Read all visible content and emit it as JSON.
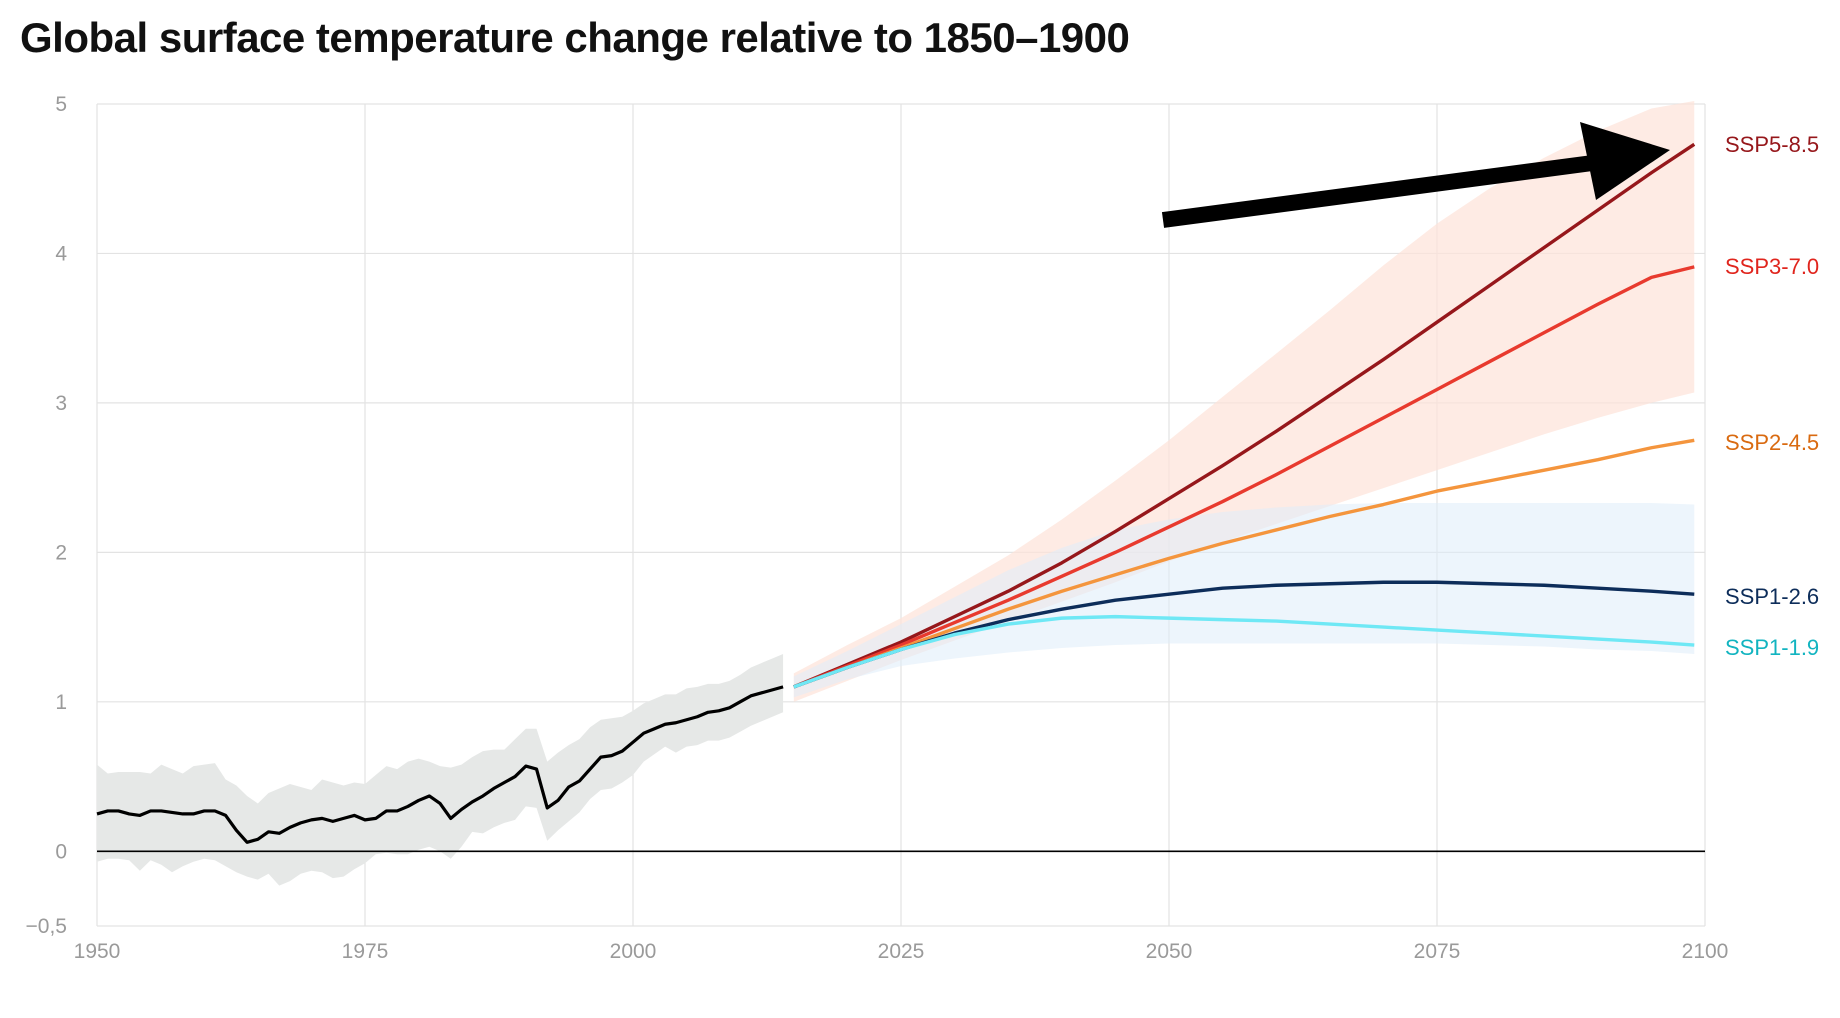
{
  "title": "Global surface temperature change relative to 1850–1900",
  "chart_data": {
    "type": "line",
    "title": "Global surface temperature change relative to 1850–1900",
    "xlabel": "",
    "ylabel": "",
    "xlim": [
      1950,
      2100
    ],
    "ylim": [
      -0.5,
      5
    ],
    "x_ticks": [
      1950,
      1975,
      2000,
      2025,
      2050,
      2075,
      2100
    ],
    "y_ticks": [
      5,
      4,
      3,
      2,
      1,
      0,
      -0.5
    ],
    "x_tick_labels": [
      "1950",
      "1975",
      "2000",
      "2025",
      "2050",
      "2075",
      "2100"
    ],
    "y_tick_labels": [
      "5",
      "4",
      "3",
      "2",
      "1",
      "0",
      "−0,5"
    ],
    "grid": true,
    "zero_line": true,
    "historical": {
      "color": "#000000",
      "x": [
        1950,
        1951,
        1952,
        1953,
        1954,
        1955,
        1956,
        1957,
        1958,
        1959,
        1960,
        1961,
        1962,
        1963,
        1964,
        1965,
        1966,
        1967,
        1968,
        1969,
        1970,
        1971,
        1972,
        1973,
        1974,
        1975,
        1976,
        1977,
        1978,
        1979,
        1980,
        1981,
        1982,
        1983,
        1984,
        1985,
        1986,
        1987,
        1988,
        1989,
        1990,
        1991,
        1992,
        1993,
        1994,
        1995,
        1996,
        1997,
        1998,
        1999,
        2000,
        2001,
        2002,
        2003,
        2004,
        2005,
        2006,
        2007,
        2008,
        2009,
        2010,
        2011,
        2012,
        2013,
        2014
      ],
      "y": [
        0.25,
        0.27,
        0.27,
        0.25,
        0.24,
        0.27,
        0.27,
        0.26,
        0.25,
        0.25,
        0.27,
        0.27,
        0.24,
        0.14,
        0.06,
        0.08,
        0.13,
        0.12,
        0.16,
        0.19,
        0.21,
        0.22,
        0.2,
        0.22,
        0.24,
        0.21,
        0.22,
        0.27,
        0.27,
        0.3,
        0.34,
        0.37,
        0.32,
        0.22,
        0.28,
        0.33,
        0.37,
        0.42,
        0.46,
        0.5,
        0.57,
        0.55,
        0.29,
        0.34,
        0.43,
        0.47,
        0.55,
        0.63,
        0.64,
        0.67,
        0.73,
        0.79,
        0.82,
        0.85,
        0.86,
        0.88,
        0.9,
        0.93,
        0.94,
        0.96,
        1.0,
        1.04,
        1.06,
        1.08,
        1.1
      ],
      "band_low": [
        -0.07,
        -0.05,
        -0.05,
        -0.06,
        -0.13,
        -0.06,
        -0.09,
        -0.14,
        -0.1,
        -0.07,
        -0.05,
        -0.06,
        -0.1,
        -0.14,
        -0.17,
        -0.19,
        -0.15,
        -0.23,
        -0.2,
        -0.15,
        -0.13,
        -0.14,
        -0.18,
        -0.17,
        -0.12,
        -0.08,
        -0.02,
        -0.01,
        -0.02,
        -0.02,
        0.01,
        0.03,
        0.0,
        -0.05,
        0.03,
        0.13,
        0.12,
        0.16,
        0.19,
        0.21,
        0.3,
        0.29,
        0.07,
        0.14,
        0.2,
        0.26,
        0.35,
        0.41,
        0.42,
        0.46,
        0.51,
        0.6,
        0.65,
        0.7,
        0.66,
        0.7,
        0.71,
        0.74,
        0.74,
        0.76,
        0.8,
        0.84,
        0.87,
        0.9,
        0.93
      ],
      "band_high": [
        0.58,
        0.52,
        0.53,
        0.53,
        0.53,
        0.52,
        0.58,
        0.55,
        0.52,
        0.57,
        0.58,
        0.59,
        0.48,
        0.44,
        0.37,
        0.32,
        0.39,
        0.42,
        0.45,
        0.43,
        0.41,
        0.48,
        0.46,
        0.44,
        0.46,
        0.45,
        0.51,
        0.57,
        0.55,
        0.6,
        0.62,
        0.6,
        0.57,
        0.56,
        0.58,
        0.63,
        0.67,
        0.68,
        0.68,
        0.75,
        0.82,
        0.82,
        0.6,
        0.66,
        0.71,
        0.75,
        0.83,
        0.88,
        0.89,
        0.9,
        0.94,
        0.99,
        1.02,
        1.05,
        1.05,
        1.09,
        1.1,
        1.12,
        1.12,
        1.14,
        1.18,
        1.23,
        1.26,
        1.29,
        1.32
      ]
    },
    "bands": [
      {
        "color": "#fde3d9",
        "opacity": 0.7,
        "x": [
          2015,
          2020,
          2025,
          2030,
          2035,
          2040,
          2045,
          2050,
          2055,
          2060,
          2065,
          2070,
          2075,
          2080,
          2085,
          2090,
          2095,
          2099
        ],
        "low": [
          1.0,
          1.14,
          1.28,
          1.41,
          1.54,
          1.67,
          1.8,
          1.94,
          2.07,
          2.19,
          2.31,
          2.43,
          2.55,
          2.67,
          2.79,
          2.9,
          3.0,
          3.07
        ],
        "high": [
          1.19,
          1.38,
          1.56,
          1.77,
          1.98,
          2.22,
          2.48,
          2.75,
          3.04,
          3.33,
          3.62,
          3.92,
          4.2,
          4.44,
          4.64,
          4.82,
          4.97,
          5.02
        ]
      },
      {
        "color": "#deecf9",
        "opacity": 0.55,
        "x": [
          2015,
          2020,
          2025,
          2030,
          2035,
          2040,
          2045,
          2050,
          2055,
          2060,
          2065,
          2070,
          2075,
          2080,
          2085,
          2090,
          2095,
          2099
        ],
        "low": [
          1.03,
          1.15,
          1.24,
          1.29,
          1.33,
          1.36,
          1.38,
          1.39,
          1.39,
          1.39,
          1.39,
          1.39,
          1.39,
          1.38,
          1.37,
          1.35,
          1.34,
          1.32
        ],
        "high": [
          1.17,
          1.34,
          1.52,
          1.7,
          1.88,
          2.03,
          2.15,
          2.22,
          2.27,
          2.3,
          2.32,
          2.33,
          2.33,
          2.33,
          2.33,
          2.33,
          2.33,
          2.32
        ]
      }
    ],
    "series": [
      {
        "name": "SSP5-8.5",
        "color": "#96171b",
        "label_color": "#96171b",
        "x": [
          2015,
          2020,
          2025,
          2030,
          2035,
          2040,
          2045,
          2050,
          2055,
          2060,
          2065,
          2070,
          2075,
          2080,
          2085,
          2090,
          2095,
          2099
        ],
        "values": [
          1.1,
          1.25,
          1.4,
          1.57,
          1.74,
          1.93,
          2.14,
          2.36,
          2.58,
          2.81,
          3.05,
          3.29,
          3.54,
          3.79,
          4.04,
          4.29,
          4.54,
          4.73
        ]
      },
      {
        "name": "SSP3-7.0",
        "color": "#e83a2e",
        "label_color": "#e0251d",
        "x": [
          2015,
          2020,
          2025,
          2030,
          2035,
          2040,
          2045,
          2050,
          2055,
          2060,
          2065,
          2070,
          2075,
          2080,
          2085,
          2090,
          2095,
          2099
        ],
        "values": [
          1.1,
          1.24,
          1.38,
          1.53,
          1.68,
          1.84,
          2.0,
          2.17,
          2.34,
          2.52,
          2.71,
          2.9,
          3.09,
          3.28,
          3.47,
          3.66,
          3.84,
          3.91
        ]
      },
      {
        "name": "SSP2-4.5",
        "color": "#f4953d",
        "label_color": "#d96a10",
        "x": [
          2015,
          2020,
          2025,
          2030,
          2035,
          2040,
          2045,
          2050,
          2055,
          2060,
          2065,
          2070,
          2075,
          2080,
          2085,
          2090,
          2095,
          2099
        ],
        "values": [
          1.1,
          1.23,
          1.36,
          1.49,
          1.62,
          1.74,
          1.85,
          1.96,
          2.06,
          2.15,
          2.24,
          2.32,
          2.41,
          2.48,
          2.55,
          2.62,
          2.7,
          2.75
        ]
      },
      {
        "name": "SSP1-2.6",
        "color": "#0d2d5a",
        "label_color": "#0d2d5a",
        "x": [
          2015,
          2020,
          2025,
          2030,
          2035,
          2040,
          2045,
          2050,
          2055,
          2060,
          2065,
          2070,
          2075,
          2080,
          2085,
          2090,
          2095,
          2099
        ],
        "values": [
          1.1,
          1.23,
          1.35,
          1.46,
          1.55,
          1.62,
          1.68,
          1.72,
          1.76,
          1.78,
          1.79,
          1.8,
          1.8,
          1.79,
          1.78,
          1.76,
          1.74,
          1.72
        ]
      },
      {
        "name": "SSP1-1.9",
        "color": "#6fe8f5",
        "label_color": "#12b4c0",
        "x": [
          2015,
          2020,
          2025,
          2030,
          2035,
          2040,
          2045,
          2050,
          2055,
          2060,
          2065,
          2070,
          2075,
          2080,
          2085,
          2090,
          2095,
          2099
        ],
        "values": [
          1.1,
          1.23,
          1.35,
          1.45,
          1.52,
          1.56,
          1.57,
          1.56,
          1.55,
          1.54,
          1.52,
          1.5,
          1.48,
          1.46,
          1.44,
          1.42,
          1.4,
          1.38
        ]
      }
    ],
    "annotation": {
      "type": "arrow",
      "color": "#000000"
    }
  }
}
